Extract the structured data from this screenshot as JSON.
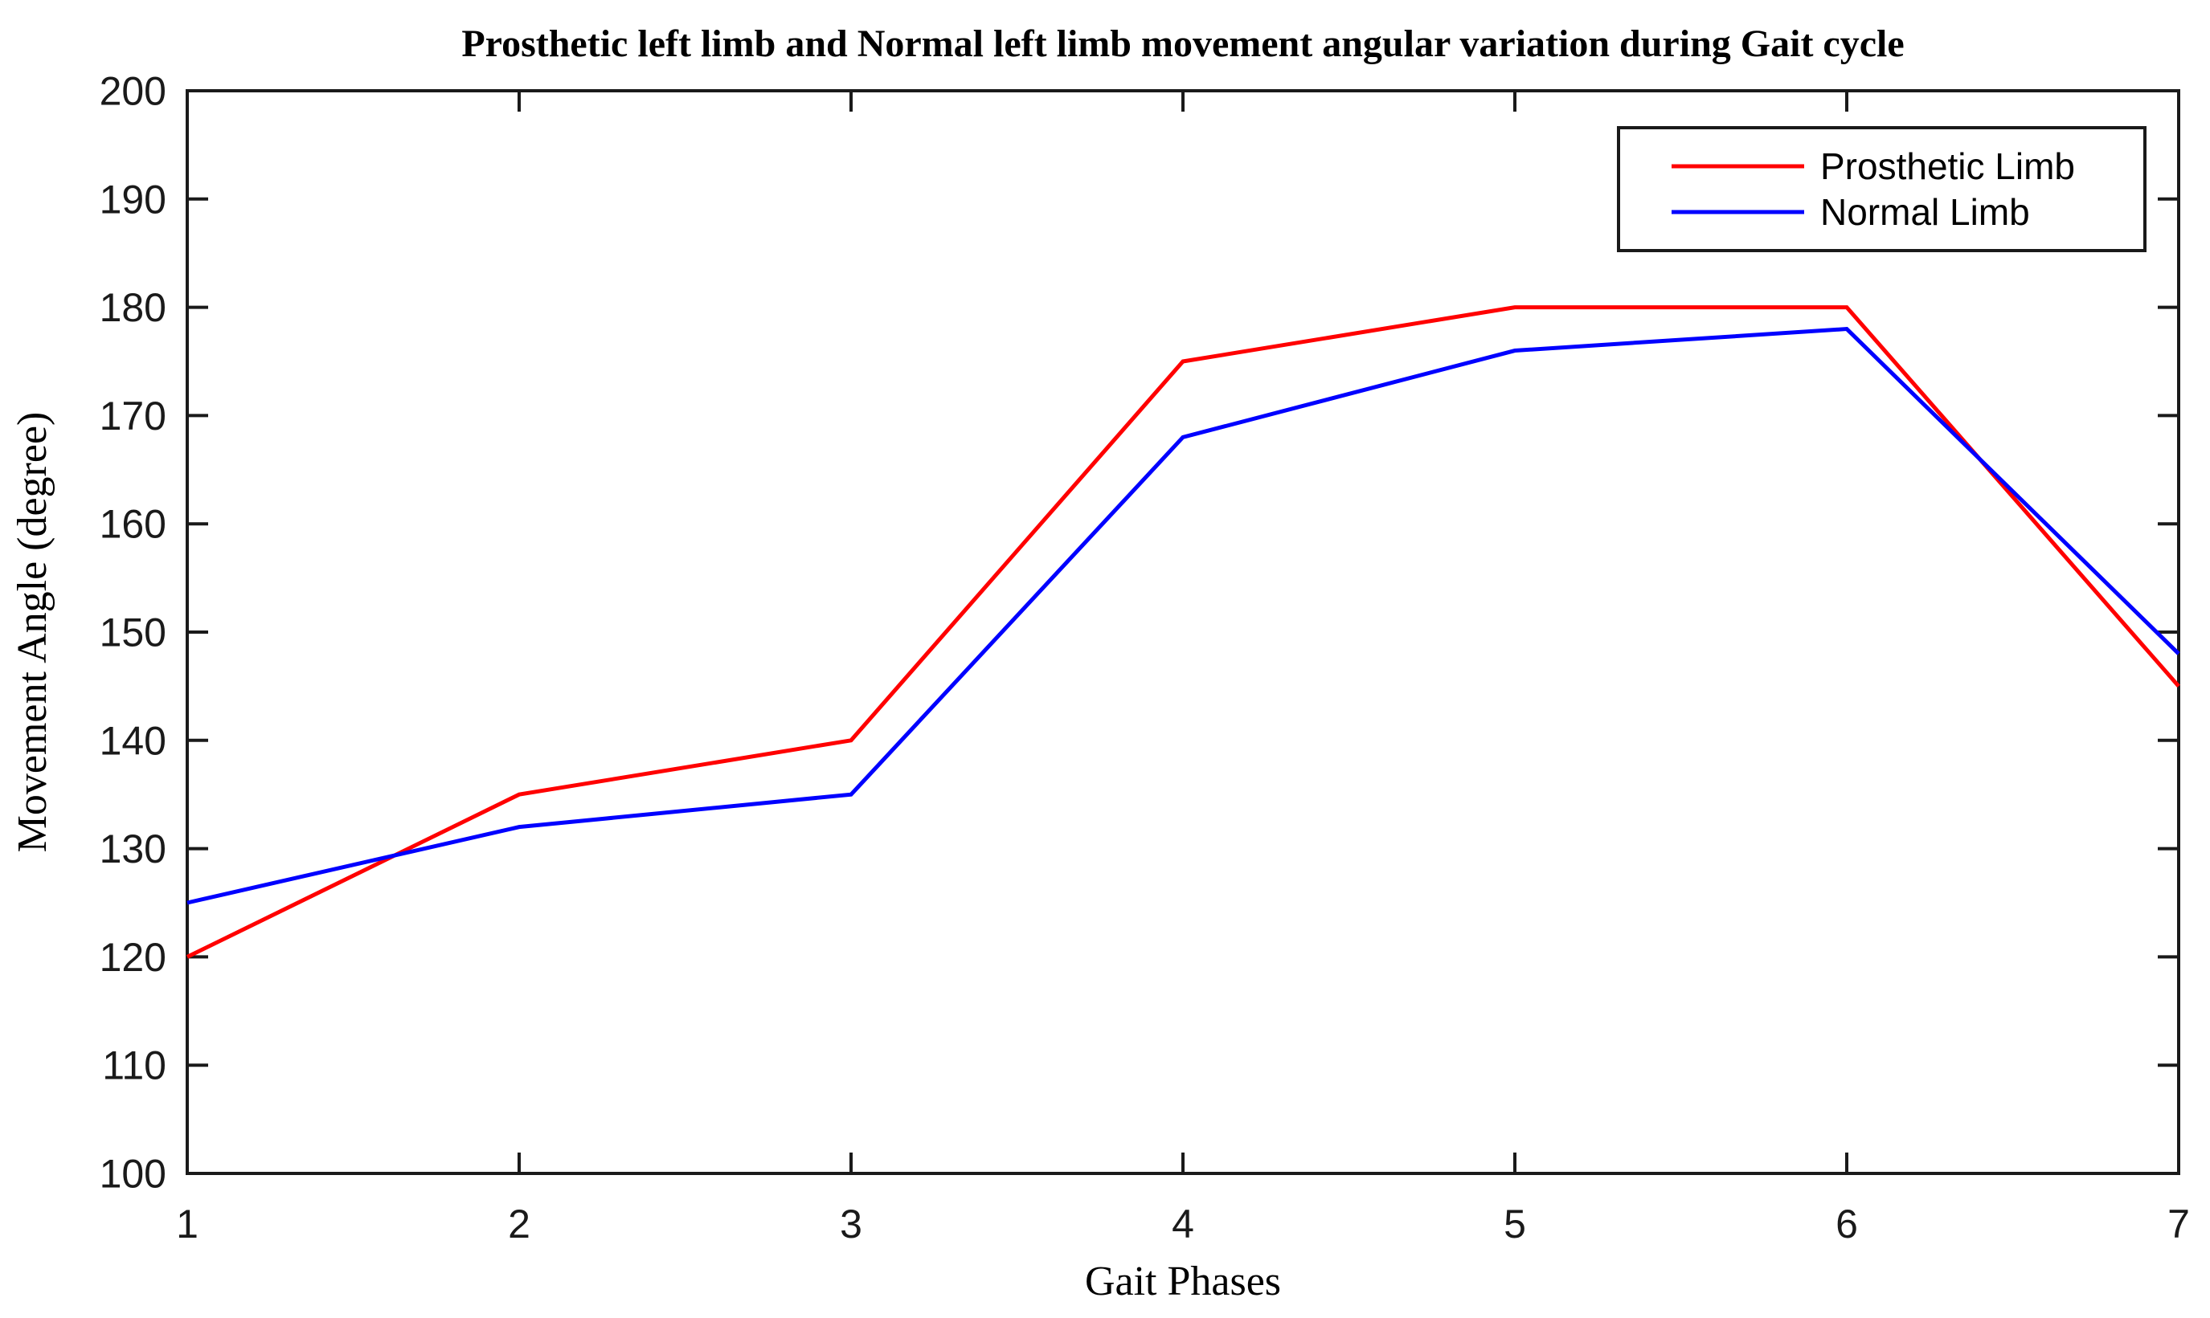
{
  "figure": {
    "background": "#ffffff"
  },
  "chart_data": {
    "type": "line",
    "title": "Prosthetic left limb and Normal left limb movement angular variation during Gait cycle",
    "xlabel": "Gait Phases",
    "ylabel": "Movement Angle (degree)",
    "x": [
      1,
      2,
      3,
      4,
      5,
      6,
      7
    ],
    "series": [
      {
        "name": "Prosthetic Limb",
        "color": "#ff0000",
        "values": [
          120,
          135,
          140,
          175,
          180,
          180,
          145
        ]
      },
      {
        "name": "Normal Limb",
        "color": "#0000ff",
        "values": [
          125,
          132,
          135,
          168,
          176,
          178,
          148
        ]
      }
    ],
    "xlim": [
      1,
      7
    ],
    "ylim": [
      100,
      200
    ],
    "xticks": [
      1,
      2,
      3,
      4,
      5,
      6,
      7
    ],
    "yticks": [
      100,
      110,
      120,
      130,
      140,
      150,
      160,
      170,
      180,
      190,
      200
    ],
    "grid": false,
    "box": true,
    "legend_position": "top-right",
    "colors": {
      "axis": "#1a1a1a",
      "background": "#ffffff"
    }
  }
}
